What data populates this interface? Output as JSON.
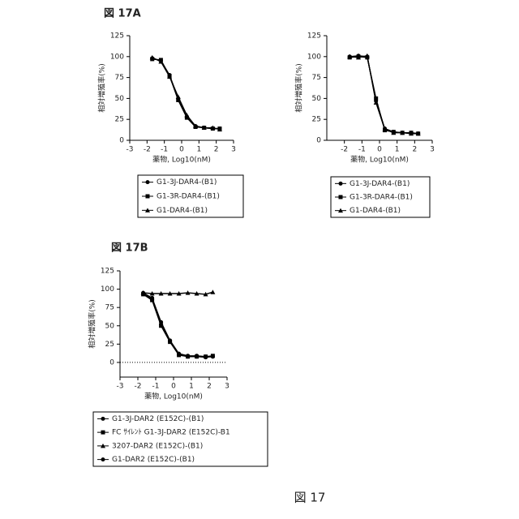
{
  "caption": "図 17",
  "chart_data": [
    {
      "type": "line",
      "title": "図 17A",
      "y_label": "相対増殖率(%)",
      "x_label": "薬物, Log10(nM)",
      "x": [
        -1.7,
        -1.2,
        -0.7,
        -0.2,
        0.3,
        0.8,
        1.3,
        1.8,
        2.2
      ],
      "xlim": [
        -3,
        3
      ],
      "xticks": [
        -3,
        -2,
        -1,
        0,
        1,
        2,
        3
      ],
      "ylim": [
        0,
        125
      ],
      "yticks": [
        0,
        25,
        50,
        75,
        100,
        125
      ],
      "legend": "below",
      "zero_line": false,
      "series": [
        {
          "name": "G1-3J-DAR4-(B1)",
          "color": "#000000",
          "marker": "circle",
          "values": [
            98,
            95,
            78,
            50,
            28,
            17,
            15,
            14,
            14
          ]
        },
        {
          "name": "G1-3R-DAR4-(B1)",
          "color": "#000000",
          "marker": "square",
          "values": [
            97,
            96,
            77,
            48,
            27,
            16,
            15,
            14,
            14
          ]
        },
        {
          "name": "G1-DAR4-(B1)",
          "color": "#000000",
          "marker": "triangle",
          "values": [
            99,
            94,
            76,
            52,
            30,
            17,
            15,
            15,
            13
          ]
        }
      ]
    },
    {
      "type": "line",
      "y_label": "相対増殖率(%)",
      "x_label": "薬物, Log10(nM)",
      "x": [
        -1.7,
        -1.2,
        -0.7,
        -0.2,
        0.3,
        0.8,
        1.3,
        1.8,
        2.2
      ],
      "xlim": [
        -3,
        3
      ],
      "xticks": [
        -2,
        -1,
        0,
        1,
        2,
        3
      ],
      "ylim": [
        0,
        125
      ],
      "yticks": [
        0,
        25,
        50,
        75,
        100,
        125
      ],
      "legend": "below",
      "zero_line": false,
      "series": [
        {
          "name": "G1-3J-DAR4-(B1)",
          "color": "#000000",
          "marker": "circle",
          "values": [
            100,
            101,
            100,
            47,
            14,
            10,
            9,
            9,
            8
          ]
        },
        {
          "name": "G1-3R-DAR4-(B1)",
          "color": "#000000",
          "marker": "square",
          "values": [
            99,
            100,
            99,
            50,
            12,
            10,
            9,
            9,
            8
          ]
        },
        {
          "name": "G1-DAR4-(B1)",
          "color": "#000000",
          "marker": "triangle",
          "values": [
            100,
            99,
            101,
            45,
            13,
            9,
            9,
            8,
            8
          ]
        }
      ]
    },
    {
      "type": "line",
      "title": "図 17B",
      "y_label": "相対増殖率(%)",
      "x_label": "薬物, Log10(nM)",
      "x": [
        -1.7,
        -1.2,
        -0.7,
        -0.2,
        0.3,
        0.8,
        1.3,
        1.8,
        2.2
      ],
      "xlim": [
        -3,
        3
      ],
      "xticks": [
        -3,
        -2,
        -1,
        0,
        1,
        2,
        3
      ],
      "ylim": [
        -20,
        125
      ],
      "yticks": [
        0,
        25,
        50,
        75,
        100,
        125
      ],
      "legend": "below",
      "zero_line": true,
      "series": [
        {
          "name": "G1-3J-DAR2 (E152C)-(B1)",
          "color": "#000000",
          "marker": "circle",
          "values": [
            95,
            88,
            55,
            30,
            12,
            9,
            9,
            8,
            8
          ]
        },
        {
          "name": "FC ｻｲﾚﾝﾄ G1-3J-DAR2 (E152C)-B1",
          "color": "#000000",
          "marker": "square",
          "values": [
            93,
            85,
            50,
            28,
            10,
            8,
            8,
            8,
            9
          ]
        },
        {
          "name": "3207-DAR2 (E152C)-(B1)",
          "color": "#000000",
          "marker": "triangle",
          "values": [
            95,
            94,
            94,
            94,
            94,
            95,
            94,
            93,
            96
          ]
        },
        {
          "name": "G1-DAR2 (E152C)-(B1)",
          "color": "#000000",
          "marker": "circle",
          "values": [
            94,
            86,
            52,
            29,
            11,
            8,
            8,
            7,
            8
          ]
        }
      ]
    }
  ]
}
